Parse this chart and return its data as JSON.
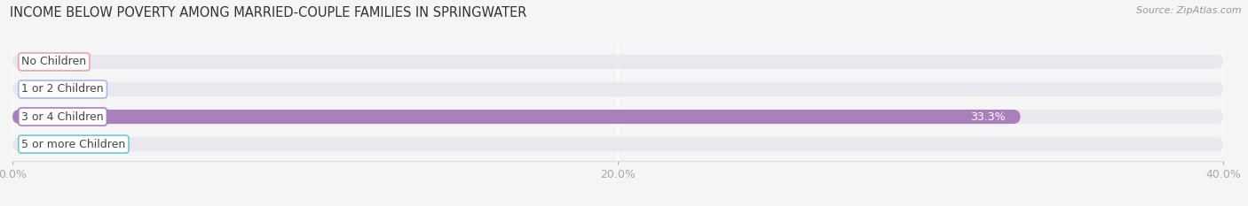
{
  "title": "INCOME BELOW POVERTY AMONG MARRIED-COUPLE FAMILIES IN SPRINGWATER",
  "source": "Source: ZipAtlas.com",
  "categories": [
    "No Children",
    "1 or 2 Children",
    "3 or 4 Children",
    "5 or more Children"
  ],
  "values": [
    0.0,
    0.0,
    33.3,
    0.0
  ],
  "bar_colors": [
    "#f0a0a8",
    "#a8b8e8",
    "#aa80bc",
    "#70c8d0"
  ],
  "track_color": "#e8e8ee",
  "bg_color": "#f5f5f5",
  "label_bg_color": "#ffffff",
  "label_text_color": "#555555",
  "value_text_color": "#555555",
  "xlim": [
    0,
    40
  ],
  "xticks": [
    0.0,
    20.0,
    40.0
  ],
  "xtick_labels": [
    "0.0%",
    "20.0%",
    "40.0%"
  ],
  "title_fontsize": 10.5,
  "bar_height": 0.52,
  "value_label_fontsize": 9,
  "cat_label_fontsize": 9
}
